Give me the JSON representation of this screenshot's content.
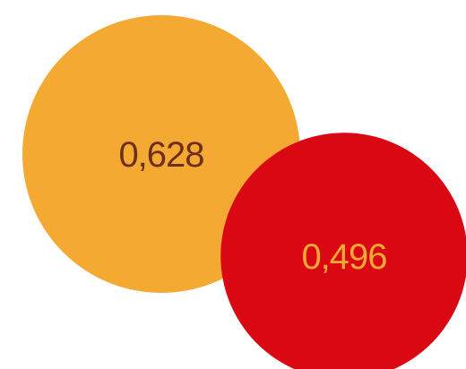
{
  "chart_data": {
    "type": "bubble",
    "items": [
      {
        "label": "0,628",
        "value": 0.628,
        "color": "#F4A932",
        "text_color": "#6E2E1C"
      },
      {
        "label": "0,496",
        "value": 0.496,
        "color": "#D90812",
        "text_color": "#F4A932"
      }
    ],
    "title": "",
    "legend": "none"
  }
}
